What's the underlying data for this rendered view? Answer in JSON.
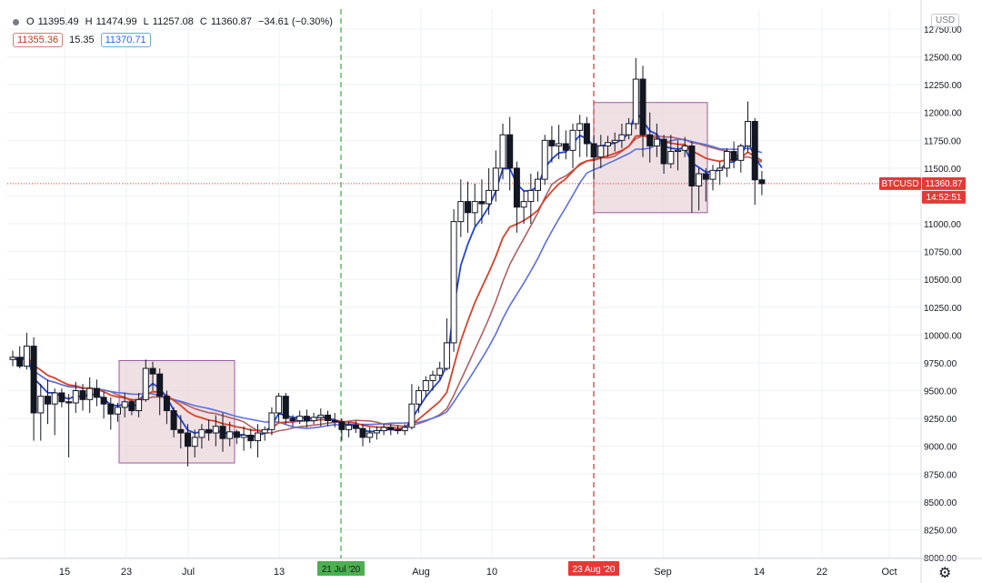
{
  "header": {
    "open_label": "O",
    "open": "11395.49",
    "high_label": "H",
    "high": "11474.99",
    "low_label": "L",
    "low": "11257.08",
    "close_label": "C",
    "close": "11360.87",
    "change": "−34.61 (−0.30%)",
    "ind_red": "11355.36",
    "ind_mid": "15.35",
    "ind_blue": "11370.71"
  },
  "currency_button": "USD",
  "symbol_tag": "BTCUSD",
  "price_tag": "11360.87",
  "countdown_tag": "14:52:51",
  "vline_green_label": "21 Jul '20",
  "vline_red_label": "23 Aug '20",
  "colors": {
    "green_line": "#4caf50",
    "red_line": "#e53935",
    "ma_fast": "#2442d6",
    "ma_mid": "#d7412a",
    "ma_slow": "#5b6fe0",
    "ma_signal": "#b06060",
    "box_fill": "#ead5d9",
    "box_border": "#9c5aa0"
  },
  "chart_data": {
    "type": "candlestick",
    "y_axis_ticks": [
      "12750.00",
      "12500.00",
      "12250.00",
      "12000.00",
      "11750.00",
      "11500.00",
      "11250.00",
      "11000.00",
      "10750.00",
      "10500.00",
      "10250.00",
      "10000.00",
      "9750.00",
      "9500.00",
      "9250.00",
      "9000.00",
      "8750.00",
      "8500.00",
      "8250.00",
      "8000.00"
    ],
    "x_axis_ticks": [
      "15",
      "23",
      "Jul",
      "13",
      "Aug",
      "10",
      "Sep",
      "14",
      "22",
      "Oct"
    ],
    "ylim": [
      8000,
      12850
    ],
    "grid": true,
    "current_price": 11360.87,
    "candles": [
      [
        9780,
        9860,
        9720,
        9800
      ],
      [
        9800,
        9900,
        9700,
        9720
      ],
      [
        9720,
        10020,
        9690,
        9900
      ],
      [
        9900,
        9980,
        9050,
        9300
      ],
      [
        9300,
        9560,
        9050,
        9450
      ],
      [
        9450,
        9600,
        9200,
        9380
      ],
      [
        9380,
        9520,
        9100,
        9480
      ],
      [
        9480,
        9520,
        9350,
        9400
      ],
      [
        9400,
        9470,
        8900,
        9390
      ],
      [
        9390,
        9580,
        9300,
        9500
      ],
      [
        9500,
        9560,
        9320,
        9420
      ],
      [
        9420,
        9620,
        9300,
        9520
      ],
      [
        9520,
        9600,
        9360,
        9440
      ],
      [
        9440,
        9490,
        9250,
        9380
      ],
      [
        9380,
        9440,
        9150,
        9290
      ],
      [
        9290,
        9390,
        9220,
        9350
      ],
      [
        9350,
        9480,
        9260,
        9400
      ],
      [
        9400,
        9420,
        9280,
        9320
      ],
      [
        9320,
        9480,
        9260,
        9420
      ],
      [
        9420,
        9780,
        9400,
        9700
      ],
      [
        9700,
        9760,
        9500,
        9650
      ],
      [
        9650,
        9700,
        9280,
        9450
      ],
      [
        9450,
        9500,
        9200,
        9320
      ],
      [
        9320,
        9350,
        9080,
        9150
      ],
      [
        9150,
        9280,
        8980,
        9120
      ],
      [
        9120,
        9200,
        8820,
        9000
      ],
      [
        9000,
        9150,
        8900,
        9080
      ],
      [
        9080,
        9200,
        8980,
        9150
      ],
      [
        9150,
        9240,
        9050,
        9120
      ],
      [
        9120,
        9280,
        9000,
        9180
      ],
      [
        9180,
        9300,
        8950,
        9070
      ],
      [
        9070,
        9220,
        9000,
        9130
      ],
      [
        9130,
        9150,
        9020,
        9080
      ],
      [
        9080,
        9180,
        8960,
        9100
      ],
      [
        9100,
        9160,
        8980,
        9050
      ],
      [
        9050,
        9200,
        8900,
        9120
      ],
      [
        9120,
        9180,
        9050,
        9150
      ],
      [
        9150,
        9350,
        9100,
        9300
      ],
      [
        9300,
        9480,
        9220,
        9450
      ],
      [
        9450,
        9480,
        9200,
        9250
      ],
      [
        9250,
        9280,
        9180,
        9230
      ],
      [
        9230,
        9320,
        9200,
        9270
      ],
      [
        9270,
        9330,
        9170,
        9230
      ],
      [
        9230,
        9300,
        9200,
        9260
      ],
      [
        9260,
        9340,
        9180,
        9280
      ],
      [
        9280,
        9320,
        9180,
        9230
      ],
      [
        9230,
        9300,
        9170,
        9220
      ],
      [
        9220,
        9250,
        9050,
        9150
      ],
      [
        9150,
        9220,
        9080,
        9190
      ],
      [
        9190,
        9230,
        9120,
        9160
      ],
      [
        9160,
        9200,
        9000,
        9080
      ],
      [
        9080,
        9170,
        9030,
        9120
      ],
      [
        9120,
        9180,
        9060,
        9140
      ],
      [
        9140,
        9200,
        9100,
        9170
      ],
      [
        9170,
        9200,
        9100,
        9150
      ],
      [
        9150,
        9190,
        9110,
        9140
      ],
      [
        9140,
        9200,
        9100,
        9170
      ],
      [
        9170,
        9560,
        9150,
        9380
      ],
      [
        9380,
        9540,
        9300,
        9500
      ],
      [
        9500,
        9630,
        9440,
        9590
      ],
      [
        9590,
        9680,
        9500,
        9640
      ],
      [
        9640,
        9760,
        9600,
        9700
      ],
      [
        9700,
        10150,
        9680,
        9930
      ],
      [
        9930,
        11130,
        9850,
        11020
      ],
      [
        11020,
        11400,
        10880,
        11200
      ],
      [
        11200,
        11380,
        10920,
        11100
      ],
      [
        11100,
        11360,
        10980,
        11200
      ],
      [
        11200,
        11400,
        11000,
        11180
      ],
      [
        11180,
        11500,
        11080,
        11300
      ],
      [
        11300,
        11660,
        11200,
        11500
      ],
      [
        11500,
        11900,
        11400,
        11800
      ],
      [
        11800,
        11960,
        11300,
        11500
      ],
      [
        11500,
        11560,
        10920,
        11150
      ],
      [
        11150,
        11300,
        11000,
        11200
      ],
      [
        11200,
        11450,
        11000,
        11300
      ],
      [
        11300,
        11470,
        11200,
        11400
      ],
      [
        11400,
        11800,
        11350,
        11750
      ],
      [
        11750,
        11880,
        11550,
        11700
      ],
      [
        11700,
        11890,
        11580,
        11720
      ],
      [
        11720,
        11840,
        11580,
        11660
      ],
      [
        11660,
        11900,
        11500,
        11840
      ],
      [
        11840,
        11980,
        11600,
        11900
      ],
      [
        11900,
        11960,
        11600,
        11720
      ],
      [
        11720,
        11800,
        11400,
        11600
      ],
      [
        11600,
        11800,
        11500,
        11700
      ],
      [
        11700,
        11790,
        11600,
        11730
      ],
      [
        11730,
        11820,
        11650,
        11750
      ],
      [
        11750,
        11900,
        11680,
        11800
      ],
      [
        11800,
        11950,
        11760,
        11900
      ],
      [
        11900,
        12490,
        11850,
        12300
      ],
      [
        12300,
        12420,
        11600,
        11800
      ],
      [
        11800,
        12000,
        11550,
        11700
      ],
      [
        11700,
        11900,
        11600,
        11760
      ],
      [
        11760,
        11800,
        11450,
        11540
      ],
      [
        11540,
        11800,
        11500,
        11650
      ],
      [
        11650,
        11750,
        11480,
        11660
      ],
      [
        11660,
        11780,
        11600,
        11700
      ],
      [
        11700,
        11740,
        11100,
        11340
      ],
      [
        11340,
        11500,
        11120,
        11450
      ],
      [
        11450,
        11500,
        11200,
        11400
      ],
      [
        11400,
        11530,
        11300,
        11480
      ],
      [
        11480,
        11560,
        11350,
        11500
      ],
      [
        11500,
        11680,
        11420,
        11650
      ],
      [
        11650,
        11740,
        11500,
        11570
      ],
      [
        11570,
        11720,
        11460,
        11700
      ],
      [
        11700,
        12100,
        11640,
        11920
      ],
      [
        11920,
        11950,
        11170,
        11395
      ],
      [
        11395,
        11475,
        11257,
        11361
      ]
    ],
    "series": []
  }
}
